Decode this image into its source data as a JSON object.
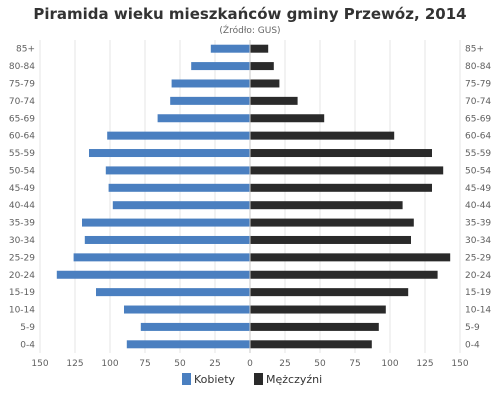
{
  "chart_data": {
    "type": "bar",
    "orientation": "horizontal",
    "layout": "population-pyramid",
    "title": "Piramida wieku mieszkańców gminy Przewóz, 2014",
    "subtitle": "(Źródło: GUS)",
    "categories": [
      "85+",
      "80-84",
      "75-79",
      "70-74",
      "65-69",
      "60-64",
      "55-59",
      "50-54",
      "45-49",
      "40-44",
      "35-39",
      "30-34",
      "25-29",
      "20-24",
      "15-19",
      "10-14",
      "5-9",
      "0-4"
    ],
    "x_ticks": [
      150,
      125,
      100,
      75,
      50,
      25,
      0,
      25,
      50,
      75,
      100,
      125,
      150
    ],
    "xlim": [
      -150,
      150
    ],
    "grid": true,
    "legend_position": "bottom",
    "series": [
      {
        "name": "Kobiety",
        "color": "#4a7fc0",
        "side": "left",
        "values": [
          28,
          42,
          56,
          57,
          66,
          102,
          115,
          103,
          101,
          98,
          120,
          118,
          126,
          138,
          110,
          90,
          78,
          88
        ]
      },
      {
        "name": "Mężczyźni",
        "color": "#2a2a2a",
        "side": "right",
        "values": [
          13,
          17,
          21,
          34,
          53,
          103,
          130,
          138,
          130,
          109,
          117,
          115,
          143,
          134,
          113,
          97,
          92,
          87
        ]
      }
    ]
  }
}
